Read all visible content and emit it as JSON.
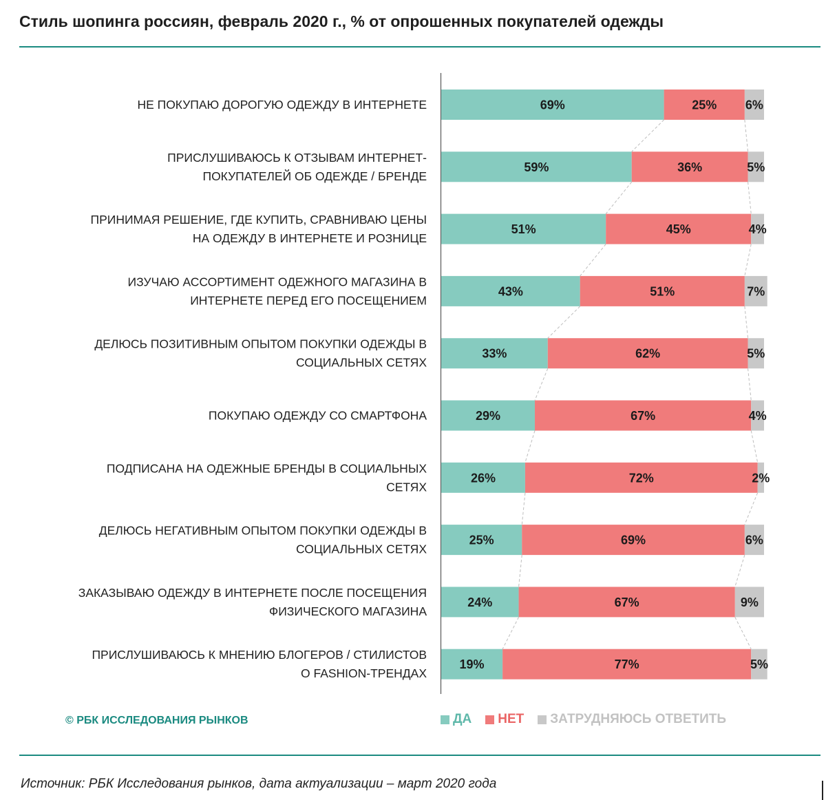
{
  "header": {
    "title": "Стиль шопинга россиян, февраль 2020 г., % от опрошенных покупателей одежды"
  },
  "footer": {
    "copyright": "© РБК ИССЛЕДОВАНИЯ РЫНКОВ",
    "source": "Источник: РБК Исследования рынков, дата актуализации – март 2020 года"
  },
  "chart_data": {
    "type": "bar",
    "orientation": "horizontal",
    "stacked": true,
    "title": "Стиль шопинга россиян, февраль 2020 г., % от опрошенных покупателей одежды",
    "categories": [
      [
        "НЕ ПОКУПАЮ ДОРОГУЮ ОДЕЖДУ В ИНТЕРНЕТЕ"
      ],
      [
        "ПРИСЛУШИВАЮСЬ К ОТЗЫВАМ ИНТЕРНЕТ-",
        "ПОКУПАТЕЛЕЙ ОБ ОДЕЖДЕ / БРЕНДЕ"
      ],
      [
        "ПРИНИМАЯ РЕШЕНИЕ, ГДЕ КУПИТЬ, СРАВНИВАЮ ЦЕНЫ",
        "НА ОДЕЖДУ В ИНТЕРНЕТЕ И РОЗНИЦЕ"
      ],
      [
        "ИЗУЧАЮ АССОРТИМЕНТ ОДЕЖНОГО МАГАЗИНА В",
        "ИНТЕРНЕТЕ ПЕРЕД ЕГО ПОСЕЩЕНИЕМ"
      ],
      [
        "ДЕЛЮСЬ ПОЗИТИВНЫМ ОПЫТОМ ПОКУПКИ ОДЕЖДЫ В",
        "СОЦИАЛЬНЫХ СЕТЯХ"
      ],
      [
        "ПОКУПАЮ ОДЕЖДУ СО СМАРТФОНА"
      ],
      [
        "ПОДПИСАНА НА ОДЕЖНЫЕ БРЕНДЫ В СОЦИАЛЬНЫХ",
        "СЕТЯХ"
      ],
      [
        "ДЕЛЮСЬ НЕГАТИВНЫМ ОПЫТОМ ПОКУПКИ ОДЕЖДЫ В",
        "СОЦИАЛЬНЫХ СЕТЯХ"
      ],
      [
        "ЗАКАЗЫВАЮ ОДЕЖДУ В ИНТЕРНЕТЕ ПОСЛЕ ПОСЕЩЕНИЯ",
        "ФИЗИЧЕСКОГО МАГАЗИНА"
      ],
      [
        "ПРИСЛУШИВАЮСЬ К МНЕНИЮ БЛОГЕРОВ / СТИЛИСТОВ",
        "О FASHION-ТРЕНДАХ"
      ]
    ],
    "series": [
      {
        "name": "ДА",
        "color": "#86cbbf",
        "values": [
          69,
          59,
          51,
          43,
          33,
          29,
          26,
          25,
          24,
          19
        ]
      },
      {
        "name": "НЕТ",
        "color": "#f07b7b",
        "values": [
          25,
          36,
          45,
          51,
          62,
          67,
          72,
          69,
          67,
          77
        ]
      },
      {
        "name": "ЗАТРУДНЯЮСЬ ОТВЕТИТЬ",
        "color": "#c8c8c8",
        "values": [
          6,
          5,
          4,
          7,
          5,
          4,
          2,
          6,
          9,
          5
        ]
      }
    ],
    "value_suffix": "%",
    "xlim": [
      0,
      100
    ],
    "legend_position": "bottom",
    "grid": false,
    "connector_lines": true
  }
}
